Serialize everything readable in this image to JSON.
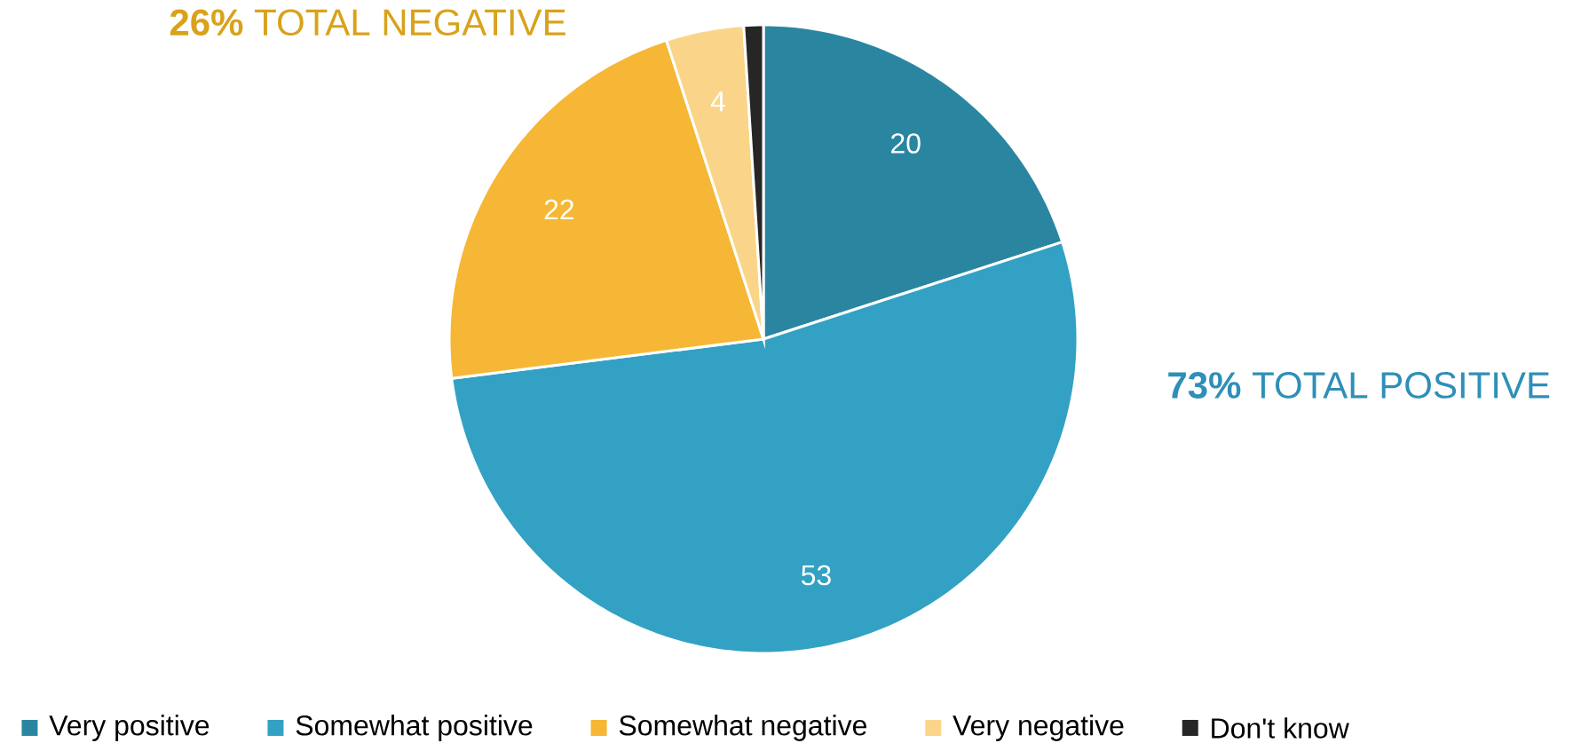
{
  "chart_data": {
    "type": "pie",
    "categories": [
      "Very positive",
      "Somewhat positive",
      "Somewhat negative",
      "Very negative",
      "Don't know"
    ],
    "values": [
      20,
      53,
      22,
      4,
      1
    ],
    "colors": [
      "#2a86a0",
      "#33a1c3",
      "#f5b735",
      "#fad589",
      "#262626"
    ],
    "value_labels": [
      "20",
      "53",
      "22",
      "4",
      null
    ],
    "annotations": [
      "**26%** TOTAL NEGATIVE",
      "**73%** TOTAL POSITIVE"
    ],
    "legend": "bottom"
  }
}
